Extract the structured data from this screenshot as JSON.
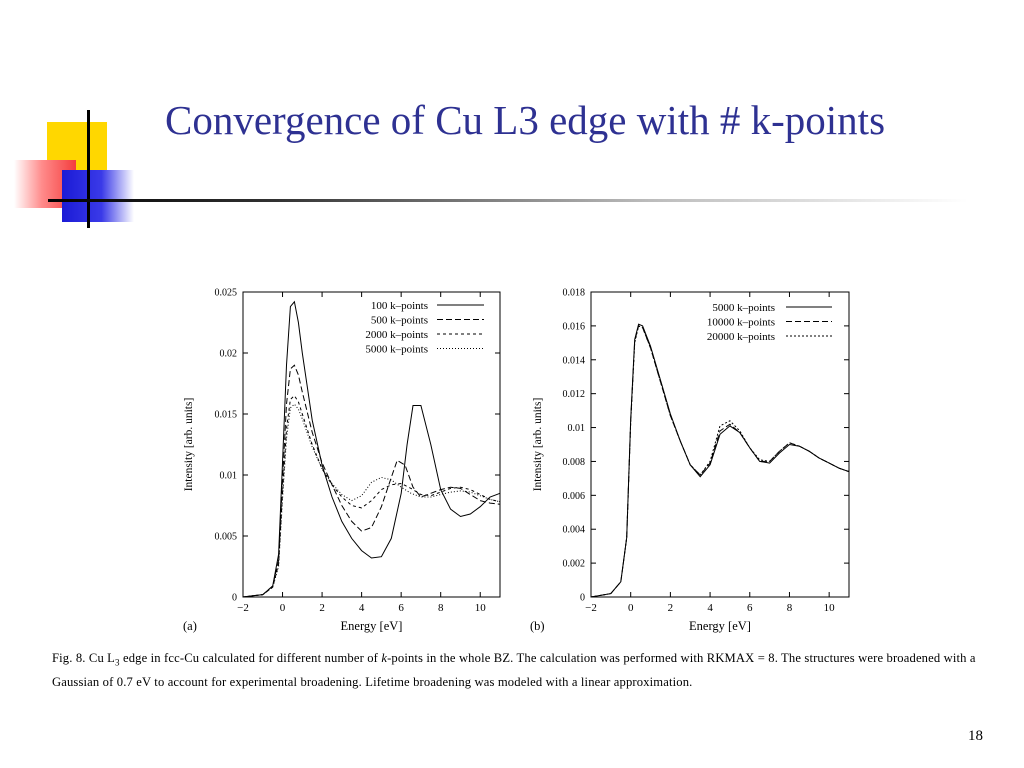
{
  "slide": {
    "title": "Convergence of Cu L3 edge with # k-points",
    "page_number": "18",
    "colors": {
      "title": "#2e3192",
      "accent_yellow": "#ffd700",
      "accent_red": "#f43d3d",
      "accent_blue": "#1b1bd6"
    }
  },
  "caption": {
    "prefix": "Fig. 8.  Cu L",
    "subscript": "3",
    "mid1": " edge in fcc-Cu calculated for different number of ",
    "italic": "k",
    "mid2": "-points in the whole BZ. The calculation was performed with RKMAX = 8. The structures were broadened with a Gaussian of 0.7 eV to account for experimental broadening. Lifetime broadening was modeled with a linear approximation."
  },
  "chart_data": [
    {
      "panel_label": "(a)",
      "type": "line",
      "xlabel": "Energy [eV]",
      "ylabel": "Intensity [arb. units]",
      "xlim": [
        -2,
        11
      ],
      "ylim": [
        0,
        0.025
      ],
      "xticks": [
        -2,
        0,
        2,
        4,
        6,
        8,
        10
      ],
      "yticks": [
        0,
        0.005,
        0.01,
        0.015,
        0.02,
        0.025
      ],
      "ytick_labels": [
        "0",
        "0.005",
        "0.01",
        "0.015",
        "0.02",
        "0.025"
      ],
      "legend_position": "top-right",
      "series": [
        {
          "name": "100 k–points",
          "dash": "",
          "x": [
            -2,
            -1,
            -0.5,
            -0.2,
            0,
            0.2,
            0.4,
            0.6,
            0.8,
            1,
            1.5,
            2,
            2.5,
            3,
            3.5,
            4,
            4.5,
            5,
            5.5,
            6,
            6.3,
            6.6,
            7,
            7.5,
            8,
            8.5,
            9,
            9.5,
            10,
            10.5,
            11
          ],
          "y": [
            0,
            0.0002,
            0.0009,
            0.0035,
            0.011,
            0.019,
            0.0238,
            0.0242,
            0.0225,
            0.02,
            0.0145,
            0.0108,
            0.0082,
            0.0062,
            0.0048,
            0.0038,
            0.0032,
            0.0033,
            0.0048,
            0.0085,
            0.0125,
            0.0157,
            0.0157,
            0.0125,
            0.0088,
            0.0072,
            0.0066,
            0.0068,
            0.0074,
            0.0082,
            0.0085
          ]
        },
        {
          "name": "500 k–points",
          "dash": "6,3",
          "x": [
            -2,
            -1,
            -0.5,
            -0.2,
            0,
            0.2,
            0.4,
            0.6,
            0.8,
            1,
            1.5,
            2,
            2.5,
            3,
            3.5,
            4,
            4.5,
            5,
            5.5,
            5.8,
            6.2,
            6.6,
            7,
            7.5,
            8,
            8.5,
            9,
            9.5,
            10,
            10.5,
            11
          ],
          "y": [
            0,
            0.0002,
            0.0009,
            0.003,
            0.0095,
            0.0158,
            0.0187,
            0.019,
            0.0182,
            0.0168,
            0.0135,
            0.011,
            0.0092,
            0.0075,
            0.0062,
            0.0054,
            0.0057,
            0.0074,
            0.0098,
            0.0112,
            0.0108,
            0.009,
            0.0082,
            0.0085,
            0.0088,
            0.009,
            0.0089,
            0.0084,
            0.0079,
            0.0077,
            0.0076
          ]
        },
        {
          "name": "2000 k–points",
          "dash": "3,3",
          "x": [
            -2,
            -1,
            -0.5,
            -0.2,
            0,
            0.2,
            0.4,
            0.6,
            0.8,
            1,
            1.5,
            2,
            2.5,
            3,
            3.5,
            4,
            4.5,
            5,
            5.5,
            6,
            6.5,
            7,
            7.5,
            8,
            8.5,
            9,
            9.5,
            10,
            10.5,
            11
          ],
          "y": [
            0,
            0.0002,
            0.0008,
            0.0027,
            0.0085,
            0.0138,
            0.0162,
            0.0165,
            0.016,
            0.015,
            0.0125,
            0.0105,
            0.0092,
            0.0082,
            0.0075,
            0.0073,
            0.0079,
            0.0088,
            0.0092,
            0.0093,
            0.0089,
            0.0084,
            0.0083,
            0.0086,
            0.0089,
            0.009,
            0.0088,
            0.0084,
            0.008,
            0.0078
          ]
        },
        {
          "name": "5000 k–points",
          "dash": "1,2",
          "x": [
            -2,
            -1,
            -0.5,
            -0.2,
            0,
            0.2,
            0.4,
            0.6,
            0.8,
            1,
            1.5,
            2,
            2.5,
            3,
            3.5,
            4,
            4.5,
            5,
            5.5,
            6,
            6.5,
            7,
            7.5,
            8,
            8.5,
            9,
            9.5,
            10,
            10.5,
            11
          ],
          "y": [
            0,
            0.0002,
            0.0008,
            0.0025,
            0.008,
            0.013,
            0.0155,
            0.0158,
            0.0154,
            0.0146,
            0.0123,
            0.0105,
            0.0093,
            0.0084,
            0.0079,
            0.0083,
            0.0094,
            0.0098,
            0.0096,
            0.009,
            0.0085,
            0.0082,
            0.0082,
            0.0084,
            0.0086,
            0.0087,
            0.0086,
            0.0083,
            0.008,
            0.0078
          ]
        }
      ]
    },
    {
      "panel_label": "(b)",
      "type": "line",
      "xlabel": "Energy [eV]",
      "ylabel": "Intensity [arb. units]",
      "xlim": [
        -2,
        11
      ],
      "ylim": [
        0,
        0.018
      ],
      "xticks": [
        -2,
        0,
        2,
        4,
        6,
        8,
        10
      ],
      "yticks": [
        0,
        0.002,
        0.004,
        0.006,
        0.008,
        0.01,
        0.012,
        0.014,
        0.016,
        0.018
      ],
      "ytick_labels": [
        "0",
        "0.002",
        "0.004",
        "0.006",
        "0.008",
        "0.01",
        "0.012",
        "0.014",
        "0.016",
        "0.018"
      ],
      "legend_position": "top-right",
      "series": [
        {
          "name": "5000 k–points",
          "dash": "",
          "x": [
            -2,
            -1,
            -0.5,
            -0.2,
            0,
            0.2,
            0.4,
            0.6,
            1,
            1.5,
            2,
            2.5,
            3,
            3.5,
            4,
            4.5,
            5,
            5.5,
            6,
            6.5,
            7,
            7.5,
            8,
            8.5,
            9,
            9.5,
            10,
            10.5,
            11
          ],
          "y": [
            0,
            0.0002,
            0.0009,
            0.0035,
            0.0105,
            0.0152,
            0.0161,
            0.016,
            0.0148,
            0.0128,
            0.0108,
            0.0092,
            0.0078,
            0.0071,
            0.0078,
            0.0096,
            0.0101,
            0.0097,
            0.0088,
            0.008,
            0.0079,
            0.0085,
            0.009,
            0.0089,
            0.0086,
            0.0082,
            0.0079,
            0.0076,
            0.0074
          ]
        },
        {
          "name": "10000 k–points",
          "dash": "6,3",
          "x": [
            -2,
            -1,
            -0.5,
            -0.2,
            0,
            0.2,
            0.4,
            0.6,
            1,
            1.5,
            2,
            2.5,
            3,
            3.5,
            4,
            4.5,
            5,
            5.5,
            6,
            6.5,
            7,
            7.5,
            8,
            8.5,
            9,
            9.5,
            10,
            10.5,
            11
          ],
          "y": [
            0,
            0.0002,
            0.0009,
            0.0035,
            0.0104,
            0.0151,
            0.016,
            0.0159,
            0.0147,
            0.0127,
            0.0107,
            0.0092,
            0.0078,
            0.0072,
            0.0079,
            0.0098,
            0.0102,
            0.0097,
            0.0088,
            0.008,
            0.008,
            0.0086,
            0.0091,
            0.0089,
            0.0086,
            0.0082,
            0.0079,
            0.0076,
            0.0074
          ]
        },
        {
          "name": "20000 k–points",
          "dash": "2,2",
          "x": [
            -2,
            -1,
            -0.5,
            -0.2,
            0,
            0.2,
            0.4,
            0.6,
            1,
            1.5,
            2,
            2.5,
            3,
            3.5,
            4,
            4.5,
            5,
            5.5,
            6,
            6.5,
            7,
            7.5,
            8,
            8.5,
            9,
            9.5,
            10,
            10.5,
            11
          ],
          "y": [
            0,
            0.0002,
            0.0009,
            0.0035,
            0.0103,
            0.015,
            0.016,
            0.0159,
            0.0147,
            0.0127,
            0.0107,
            0.0092,
            0.0078,
            0.0072,
            0.008,
            0.0101,
            0.0104,
            0.0098,
            0.0088,
            0.0081,
            0.008,
            0.0086,
            0.0091,
            0.0089,
            0.0086,
            0.0082,
            0.0079,
            0.0076,
            0.0074
          ]
        }
      ]
    }
  ]
}
